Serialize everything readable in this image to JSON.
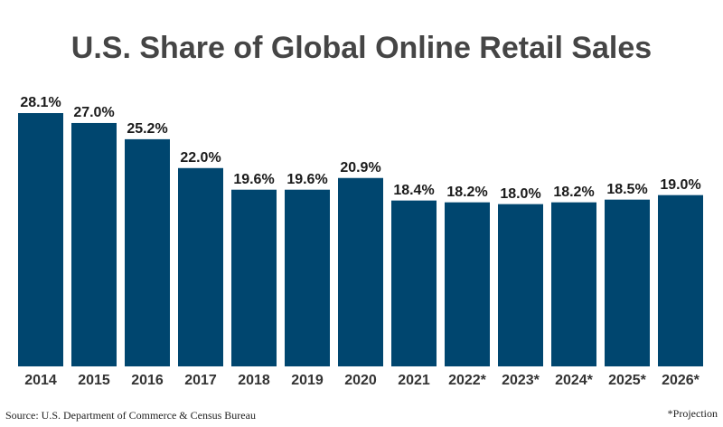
{
  "chart_data": {
    "type": "bar",
    "title": "U.S. Share of Global Online Retail Sales",
    "categories": [
      "2014",
      "2015",
      "2016",
      "2017",
      "2018",
      "2019",
      "2020",
      "2021",
      "2022*",
      "2023*",
      "2024*",
      "2025*",
      "2026*"
    ],
    "values": [
      28.1,
      27.0,
      25.2,
      22.0,
      19.6,
      19.6,
      20.9,
      18.4,
      18.2,
      18.0,
      18.2,
      18.5,
      19.0
    ],
    "value_labels": [
      "28.1%",
      "27.0%",
      "25.2%",
      "22.0%",
      "19.6%",
      "19.6%",
      "20.9%",
      "18.4%",
      "18.2%",
      "18.0%",
      "18.2%",
      "18.5%",
      "19.0%"
    ],
    "color": "#00466f",
    "source": "Source: U.S. Department of Commerce & Census Bureau",
    "note": "*Projection"
  }
}
